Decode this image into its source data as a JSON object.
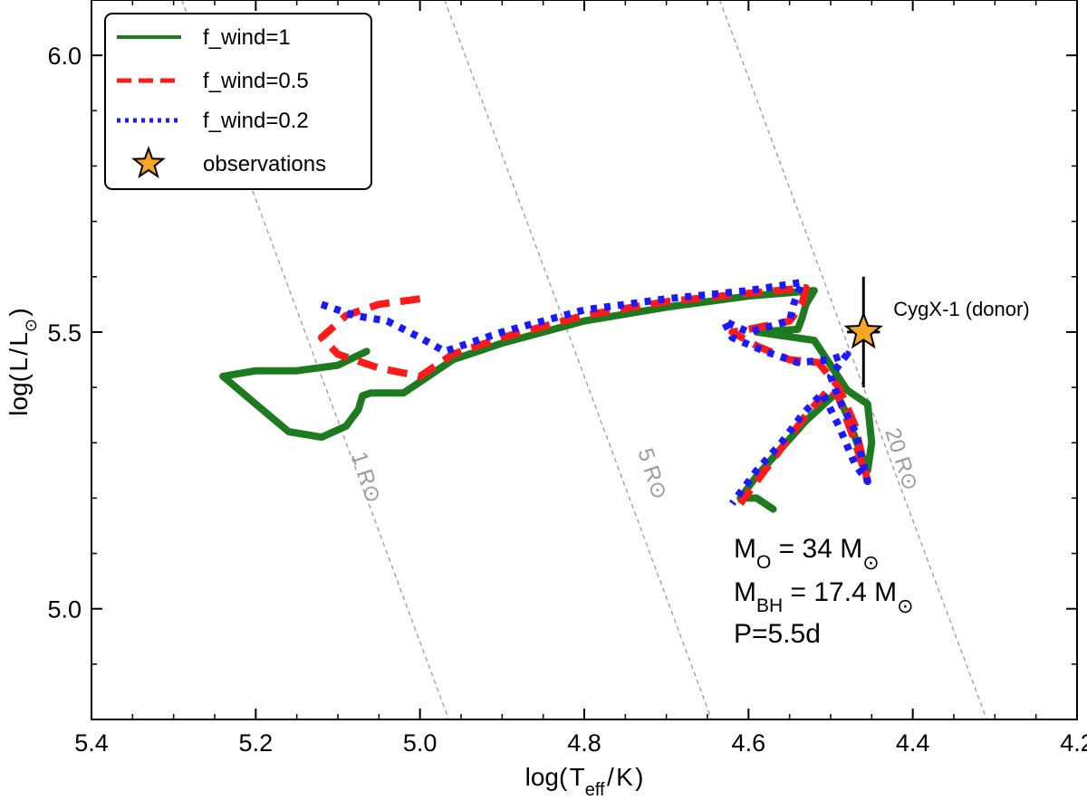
{
  "chart_data": {
    "type": "line",
    "xlabel": "log( T_eff / K )",
    "ylabel": "log( L / L_⊙ )",
    "xlim": [
      5.4,
      4.2
    ],
    "ylim": [
      4.8,
      6.1
    ],
    "x_ticks": [
      "5.4",
      "5.2",
      "5.0",
      "4.8",
      "4.6",
      "4.4",
      "4.2"
    ],
    "y_ticks": [
      "5.0",
      "5.5",
      "6.0"
    ],
    "legend": {
      "placement": "top-left",
      "entries": [
        "f_wind=1",
        "f_wind=0.5",
        "f_wind=0.2",
        "observations"
      ]
    },
    "colors": {
      "green": "#1e7a1e",
      "red": "#ff1a1a",
      "blue": "#1a1aff",
      "star": "#f5a623"
    },
    "radius_lines": [
      {
        "label": "1 R⊙",
        "points": [
          [
            5.29,
            6.1
          ],
          [
            4.965,
            4.8
          ]
        ]
      },
      {
        "label": "5 R⊙",
        "points": [
          [
            4.97,
            6.1
          ],
          [
            4.645,
            4.8
          ]
        ]
      },
      {
        "label": "20 R⊙",
        "points": [
          [
            4.635,
            6.1
          ],
          [
            4.31,
            4.8
          ]
        ]
      }
    ],
    "series": [
      {
        "name": "f_wind=1",
        "segments": [
          [
            [
              5.065,
              5.465
            ],
            [
              5.1,
              5.44
            ],
            [
              5.15,
              5.43
            ],
            [
              5.2,
              5.43
            ],
            [
              5.24,
              5.42
            ],
            [
              5.2,
              5.37
            ],
            [
              5.16,
              5.32
            ],
            [
              5.12,
              5.31
            ],
            [
              5.09,
              5.33
            ],
            [
              5.075,
              5.36
            ],
            [
              5.07,
              5.385
            ],
            [
              5.06,
              5.39
            ],
            [
              5.02,
              5.39
            ],
            [
              5.0,
              5.41
            ],
            [
              4.96,
              5.45
            ],
            [
              4.9,
              5.48
            ],
            [
              4.8,
              5.52
            ],
            [
              4.7,
              5.545
            ],
            [
              4.6,
              5.565
            ],
            [
              4.52,
              5.575
            ],
            [
              4.53,
              5.55
            ],
            [
              4.535,
              5.525
            ],
            [
              4.54,
              5.505
            ],
            [
              4.59,
              5.5
            ],
            [
              4.52,
              5.485
            ],
            [
              4.5,
              5.44
            ],
            [
              4.48,
              5.395
            ],
            [
              4.455,
              5.37
            ],
            [
              4.45,
              5.3
            ],
            [
              4.455,
              5.25
            ],
            [
              4.468,
              5.3
            ],
            [
              4.48,
              5.35
            ],
            [
              4.493,
              5.39
            ],
            [
              4.53,
              5.34
            ],
            [
              4.56,
              5.29
            ],
            [
              4.59,
              5.24
            ],
            [
              4.61,
              5.2
            ],
            [
              4.59,
              5.2
            ],
            [
              4.57,
              5.18
            ]
          ]
        ]
      },
      {
        "name": "f_wind=0.5",
        "segments": [
          [
            [
              5.0,
              5.56
            ],
            [
              5.05,
              5.55
            ],
            [
              5.09,
              5.53
            ],
            [
              5.12,
              5.49
            ],
            [
              5.1,
              5.46
            ],
            [
              5.05,
              5.435
            ],
            [
              5.0,
              5.42
            ],
            [
              4.96,
              5.46
            ],
            [
              4.9,
              5.49
            ],
            [
              4.8,
              5.53
            ],
            [
              4.7,
              5.555
            ],
            [
              4.6,
              5.57
            ],
            [
              4.53,
              5.58
            ],
            [
              4.535,
              5.55
            ],
            [
              4.55,
              5.52
            ],
            [
              4.6,
              5.505
            ],
            [
              4.62,
              5.5
            ],
            [
              4.59,
              5.475
            ],
            [
              4.55,
              5.45
            ],
            [
              4.515,
              5.445
            ],
            [
              4.49,
              5.4
            ],
            [
              4.47,
              5.33
            ],
            [
              4.455,
              5.23
            ],
            [
              4.47,
              5.3
            ],
            [
              4.49,
              5.38
            ],
            [
              4.5,
              5.4
            ],
            [
              4.53,
              5.35
            ],
            [
              4.56,
              5.29
            ],
            [
              4.59,
              5.23
            ],
            [
              4.61,
              5.19
            ]
          ]
        ]
      },
      {
        "name": "f_wind=0.2",
        "segments": [
          [
            [
              5.12,
              5.55
            ],
            [
              5.08,
              5.53
            ],
            [
              5.04,
              5.52
            ],
            [
              5.0,
              5.49
            ],
            [
              4.97,
              5.465
            ],
            [
              4.9,
              5.5
            ],
            [
              4.8,
              5.54
            ],
            [
              4.7,
              5.56
            ],
            [
              4.6,
              5.575
            ],
            [
              4.535,
              5.59
            ],
            [
              4.545,
              5.55
            ],
            [
              4.55,
              5.52
            ],
            [
              4.6,
              5.5
            ],
            [
              4.63,
              5.52
            ],
            [
              4.62,
              5.49
            ],
            [
              4.58,
              5.465
            ],
            [
              4.54,
              5.445
            ],
            [
              4.5,
              5.45
            ],
            [
              4.48,
              5.46
            ],
            [
              4.5,
              5.42
            ],
            [
              4.49,
              5.38
            ],
            [
              4.47,
              5.32
            ],
            [
              4.455,
              5.23
            ],
            [
              4.47,
              5.26
            ],
            [
              4.49,
              5.33
            ],
            [
              4.51,
              5.39
            ],
            [
              4.535,
              5.35
            ],
            [
              4.56,
              5.3
            ],
            [
              4.59,
              5.25
            ],
            [
              4.61,
              5.21
            ],
            [
              4.62,
              5.19
            ]
          ]
        ]
      }
    ],
    "observation": {
      "label": "CygX-1 (donor)",
      "x": 4.46,
      "y": 5.5,
      "yerr": 0.1,
      "xerr": 0.02
    },
    "annotations": [
      {
        "base": "M",
        "sub": "O",
        "tail": " = 34 M",
        "sun": "⊙"
      },
      {
        "base": "M",
        "sub": "BH",
        "tail": " = 17.4 M",
        "sun": "⊙"
      },
      {
        "base": "P=5.5d",
        "sub": "",
        "tail": "",
        "sun": ""
      }
    ]
  }
}
